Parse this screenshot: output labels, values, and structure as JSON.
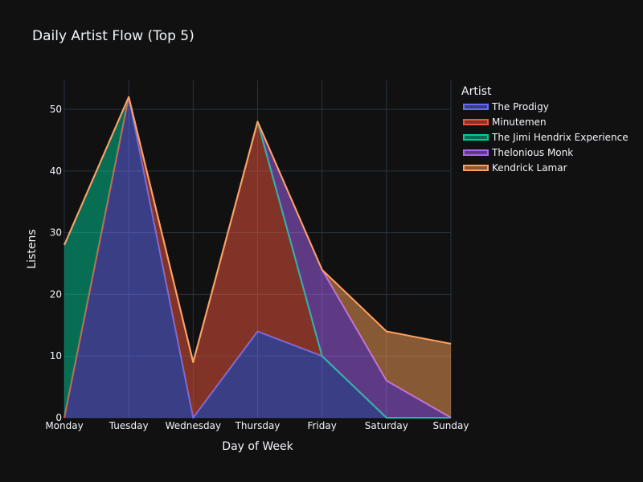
{
  "chart_data": {
    "type": "area",
    "stacked": true,
    "title": "Daily Artist Flow (Top 5)",
    "xlabel": "Day of Week",
    "ylabel": "Listens",
    "categories": [
      "Monday",
      "Tuesday",
      "Wednesday",
      "Thursday",
      "Friday",
      "Saturday",
      "Sunday"
    ],
    "ylim": [
      0,
      54.7
    ],
    "yticks": [
      0,
      10,
      20,
      30,
      40,
      50
    ],
    "grid": true,
    "legend": {
      "title": "Artist",
      "placement": "top-right-outside"
    },
    "series": [
      {
        "name": "The Prodigy",
        "color": "#636efa",
        "values": [
          0,
          52,
          0,
          14,
          10,
          0,
          0
        ]
      },
      {
        "name": "Minutemen",
        "color": "#EF553B",
        "values": [
          0,
          0,
          9,
          34,
          0,
          0,
          0
        ]
      },
      {
        "name": "The Jimi Hendrix Experience",
        "color": "#00cc96",
        "values": [
          28,
          0,
          0,
          0,
          0,
          0,
          0
        ]
      },
      {
        "name": "Thelonious Monk",
        "color": "#ab63fa",
        "values": [
          0,
          0,
          0,
          0,
          14,
          6,
          0
        ]
      },
      {
        "name": "Kendrick Lamar",
        "color": "#FFA15A",
        "values": [
          0,
          0,
          0,
          0,
          0,
          8,
          12
        ]
      }
    ]
  }
}
